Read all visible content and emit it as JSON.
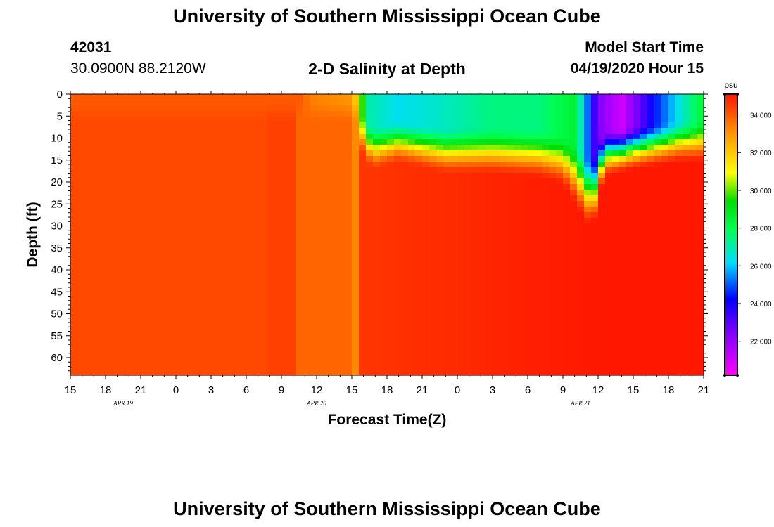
{
  "header": {
    "title": "University of Southern Mississippi Ocean Cube",
    "station_id": "42031",
    "station_coords": "30.0900N 88.2120W",
    "plot_title": "2-D Salinity at Depth",
    "model_label": "Model Start Time",
    "model_time": "04/19/2020 Hour 15"
  },
  "footer": {
    "title": "University of Southern Mississippi Ocean Cube"
  },
  "chart_data": {
    "type": "heatmap",
    "title": "2-D Salinity at Depth",
    "xlabel": "Forecast Time(Z)",
    "ylabel": "Depth (ft)",
    "x_range_hours": [
      0,
      54
    ],
    "x_tick_labels": [
      "15",
      "18",
      "21",
      "0",
      "3",
      "6",
      "9",
      "12",
      "15",
      "18",
      "21",
      "0",
      "3",
      "6",
      "9",
      "12",
      "15",
      "18",
      "21"
    ],
    "date_labels": [
      {
        "label": "APR 19",
        "hour": 4.5
      },
      {
        "label": "APR 20",
        "hour": 21
      },
      {
        "label": "APR 21",
        "hour": 43.5
      }
    ],
    "y_range": [
      0,
      64
    ],
    "y_ticks": [
      0,
      5,
      10,
      15,
      20,
      25,
      30,
      35,
      40,
      45,
      50,
      55,
      60
    ],
    "y_reversed": true,
    "colorbar": {
      "unit": "psu",
      "range": [
        20.2,
        35.1
      ],
      "tick_values": [
        22,
        24,
        26,
        28,
        30,
        32,
        34
      ],
      "tick_labels": [
        "22.000",
        "24.000",
        "26.000",
        "28.000",
        "30.000",
        "32.000",
        "34.000"
      ]
    },
    "surface_salinity_psu": [
      {
        "hour": 0,
        "value": 34.0
      },
      {
        "hour": 19.5,
        "value": 34.0
      },
      {
        "hour": 20.5,
        "value": 33.4
      },
      {
        "hour": 24.0,
        "value": 33.0
      },
      {
        "hour": 24.5,
        "value": 31.5
      },
      {
        "hour": 25.5,
        "value": 27.0
      },
      {
        "hour": 28.0,
        "value": 26.3
      },
      {
        "hour": 32.0,
        "value": 26.8
      },
      {
        "hour": 36.0,
        "value": 27.5
      },
      {
        "hour": 40.0,
        "value": 27.5
      },
      {
        "hour": 43.0,
        "value": 28.5
      },
      {
        "hour": 45.0,
        "value": 22.5
      },
      {
        "hour": 47.0,
        "value": 21.0
      },
      {
        "hour": 50.0,
        "value": 24.5
      },
      {
        "hour": 53.0,
        "value": 27.5
      },
      {
        "hour": 54.0,
        "value": 28.5
      }
    ],
    "mixed_layer_depth_ft": [
      {
        "hour": 0,
        "value": 1
      },
      {
        "hour": 24.5,
        "value": 1
      },
      {
        "hour": 25.0,
        "value": 6
      },
      {
        "hour": 26.0,
        "value": 7
      },
      {
        "hour": 28.0,
        "value": 6
      },
      {
        "hour": 32.0,
        "value": 7.5
      },
      {
        "hour": 36.0,
        "value": 7.5
      },
      {
        "hour": 40.0,
        "value": 8
      },
      {
        "hour": 42.0,
        "value": 9
      },
      {
        "hour": 44.5,
        "value": 15
      },
      {
        "hour": 45.5,
        "value": 8
      },
      {
        "hour": 48.0,
        "value": 7
      },
      {
        "hour": 52.0,
        "value": 6
      },
      {
        "hour": 54.0,
        "value": 6
      }
    ]
  }
}
